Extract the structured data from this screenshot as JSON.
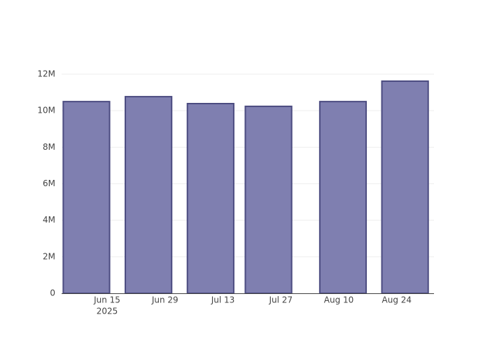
{
  "chart_data": {
    "type": "bar",
    "x": [
      "2025-06-10",
      "2025-06-25",
      "2025-07-10",
      "2025-07-24",
      "2025-08-11",
      "2025-08-26"
    ],
    "values": [
      10500000,
      10770000,
      10390000,
      10240000,
      10500000,
      11620000
    ],
    "color": "#7f7fb0",
    "edge_color": "#4b4b80",
    "xlim": [
      "2025-06-04",
      "2025-09-02"
    ],
    "xticks": [
      {
        "value": "2025-06-15",
        "label": "Jun 15"
      },
      {
        "value": "2025-06-29",
        "label": "Jun 29"
      },
      {
        "value": "2025-07-13",
        "label": "Jul 13"
      },
      {
        "value": "2025-07-27",
        "label": "Jul 27"
      },
      {
        "value": "2025-08-10",
        "label": "Aug 10"
      },
      {
        "value": "2025-08-24",
        "label": "Aug 24"
      }
    ],
    "xtick_year": "2025",
    "ylim": [
      0,
      12000000
    ],
    "yticks": [
      0,
      {
        "value": 2000000,
        "label": "2M"
      },
      {
        "value": 4000000,
        "label": "4M"
      },
      {
        "value": 6000000,
        "label": "6M"
      },
      {
        "value": 8000000,
        "label": "8M"
      },
      {
        "value": 10000000,
        "label": "10M"
      },
      {
        "value": 12000000,
        "label": "12M"
      }
    ],
    "grid": true
  }
}
